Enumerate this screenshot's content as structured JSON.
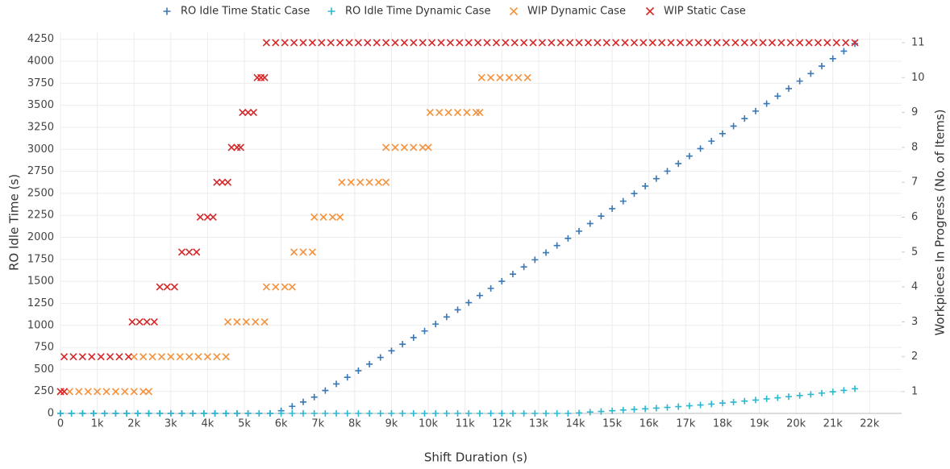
{
  "chart_data": {
    "type": "scatter",
    "x_label": "Shift Duration (s)",
    "y_label": "RO Idle Time (s)",
    "y2_label": "Workpieces In Progress (No. of Items)",
    "xlim": [
      0,
      22870
    ],
    "ylim": [
      0,
      4330
    ],
    "y2lim": [
      0.376,
      11.3
    ],
    "xticks": [
      0,
      {
        "value": 1000,
        "label": "1k"
      },
      {
        "value": 2000,
        "label": "2k"
      },
      {
        "value": 3000,
        "label": "3k"
      },
      {
        "value": 4000,
        "label": "4k"
      },
      {
        "value": 5000,
        "label": "5k"
      },
      {
        "value": 6000,
        "label": "6k"
      },
      {
        "value": 7000,
        "label": "7k"
      },
      {
        "value": 8000,
        "label": "8k"
      },
      {
        "value": 9000,
        "label": "9k"
      },
      {
        "value": 10000,
        "label": "10k"
      },
      {
        "value": 11000,
        "label": "11k"
      },
      {
        "value": 12000,
        "label": "12k"
      },
      {
        "value": 13000,
        "label": "13k"
      },
      {
        "value": 14000,
        "label": "14k"
      },
      {
        "value": 15000,
        "label": "15k"
      },
      {
        "value": 16000,
        "label": "16k"
      },
      {
        "value": 17000,
        "label": "17k"
      },
      {
        "value": 18000,
        "label": "18k"
      },
      {
        "value": 19000,
        "label": "19k"
      },
      {
        "value": 20000,
        "label": "20k"
      },
      {
        "value": 21000,
        "label": "21k"
      },
      {
        "value": 22000,
        "label": "22k"
      }
    ],
    "yticks": [
      0,
      250,
      500,
      750,
      1000,
      1250,
      1500,
      1750,
      2000,
      2250,
      2500,
      2750,
      3000,
      3250,
      3500,
      3750,
      4000,
      4250
    ],
    "y2ticks": [
      1,
      2,
      3,
      4,
      5,
      6,
      7,
      8,
      9,
      10,
      11
    ],
    "grid": true,
    "legend": "top",
    "series": [
      {
        "name": "RO Idle Time Static Case",
        "color": "#3a77b5",
        "marker": "plus",
        "x": [
          0,
          300,
          600,
          900,
          1200,
          1500,
          1800,
          2100,
          2400,
          2700,
          3000,
          3300,
          3600,
          3900,
          4200,
          4500,
          4800,
          5100,
          5400,
          5700,
          6000,
          6300,
          6600,
          6900,
          7200,
          7500,
          7800,
          8100,
          8400,
          8700,
          9000,
          9300,
          9600,
          9900,
          10200,
          10500,
          10800,
          11100,
          11400,
          11700,
          12000,
          12300,
          12600,
          12900,
          13200,
          13500,
          13800,
          14100,
          14400,
          14700,
          15000,
          15300,
          15600,
          15900,
          16200,
          16500,
          16800,
          17100,
          17400,
          17700,
          18000,
          18300,
          18600,
          18900,
          19200,
          19500,
          19800,
          20100,
          20400,
          20700,
          21000,
          21300,
          21600
        ],
        "values": [
          0,
          0,
          0,
          0,
          0,
          0,
          0,
          0,
          0,
          0,
          0,
          0,
          0,
          0,
          0,
          0,
          0,
          0,
          0,
          0,
          30,
          80,
          130,
          185,
          260,
          335,
          410,
          485,
          560,
          636,
          711,
          786,
          861,
          936,
          1015,
          1096,
          1177,
          1258,
          1339,
          1420,
          1501,
          1582,
          1664,
          1745,
          1826,
          1907,
          1988,
          2070,
          2156,
          2241,
          2326,
          2411,
          2497,
          2582,
          2667,
          2752,
          2837,
          2923,
          3008,
          3093,
          3178,
          3264,
          3349,
          3434,
          3519,
          3604,
          3690,
          3775,
          3860,
          3945,
          4030,
          4115,
          4200
        ]
      },
      {
        "name": "RO Idle Time Dynamic Case",
        "color": "#2bb7cf",
        "marker": "plus",
        "x": [
          0,
          300,
          600,
          900,
          1200,
          1500,
          1800,
          2100,
          2400,
          2700,
          3000,
          3300,
          3600,
          3900,
          4200,
          4500,
          4800,
          5100,
          5400,
          5700,
          6000,
          6300,
          6600,
          6900,
          7200,
          7500,
          7800,
          8100,
          8400,
          8700,
          9000,
          9300,
          9600,
          9900,
          10200,
          10500,
          10800,
          11100,
          11400,
          11700,
          12000,
          12300,
          12600,
          12900,
          13200,
          13500,
          13800,
          14100,
          14400,
          14700,
          15000,
          15300,
          15600,
          15900,
          16200,
          16500,
          16800,
          17100,
          17400,
          17700,
          18000,
          18300,
          18600,
          18900,
          19200,
          19500,
          19800,
          20100,
          20400,
          20700,
          21000,
          21300,
          21600
        ],
        "values": [
          0,
          0,
          0,
          0,
          0,
          0,
          0,
          0,
          0,
          0,
          0,
          0,
          0,
          0,
          0,
          0,
          0,
          0,
          0,
          0,
          0,
          0,
          0,
          0,
          0,
          0,
          0,
          0,
          0,
          0,
          0,
          0,
          0,
          0,
          0,
          0,
          0,
          0,
          0,
          0,
          0,
          0,
          0,
          0,
          0,
          0,
          0,
          5,
          15,
          22,
          30,
          38,
          45,
          52,
          60,
          68,
          77,
          86,
          96,
          106,
          117,
          128,
          140,
          152,
          165,
          177,
          190,
          203,
          216,
          230,
          245,
          262,
          280
        ]
      },
      {
        "name": "WIP Dynamic Case",
        "color": "#f5913a",
        "marker": "cross",
        "axis": "y2",
        "x": [
          0,
          250,
          500,
          750,
          1000,
          1250,
          1500,
          1750,
          2000,
          2250,
          2400,
          2000,
          2250,
          2500,
          2750,
          3000,
          3250,
          3500,
          3750,
          4000,
          4250,
          4500,
          4550,
          4800,
          5050,
          5300,
          5550,
          5600,
          5850,
          6100,
          6300,
          6350,
          6600,
          6850,
          6900,
          7150,
          7400,
          7600,
          7650,
          7900,
          8150,
          8400,
          8650,
          8850,
          8850,
          9100,
          9350,
          9600,
          9850,
          10000,
          10050,
          10300,
          10550,
          10800,
          11050,
          11300,
          11400,
          11450,
          11700,
          11950,
          12200,
          12450,
          12700
        ],
        "values": [
          1,
          1,
          1,
          1,
          1,
          1,
          1,
          1,
          1,
          1,
          1,
          2,
          2,
          2,
          2,
          2,
          2,
          2,
          2,
          2,
          2,
          2,
          3,
          3,
          3,
          3,
          3,
          4,
          4,
          4,
          4,
          5,
          5,
          5,
          6,
          6,
          6,
          6,
          7,
          7,
          7,
          7,
          7,
          7,
          8,
          8,
          8,
          8,
          8,
          8,
          9,
          9,
          9,
          9,
          9,
          9,
          9,
          10,
          10,
          10,
          10,
          10,
          10
        ]
      },
      {
        "name": "WIP Static Case",
        "color": "#d62728",
        "marker": "cross",
        "axis": "y2",
        "x": [
          0,
          100,
          100,
          350,
          600,
          850,
          1100,
          1350,
          1600,
          1850,
          1950,
          2150,
          2350,
          2550,
          2700,
          2900,
          3100,
          3300,
          3500,
          3700,
          3800,
          4000,
          4150,
          4250,
          4400,
          4550,
          4650,
          4800,
          4900,
          4950,
          5100,
          5250,
          5350,
          5450,
          5550,
          5600,
          5850,
          6100,
          6350,
          6600,
          6850,
          7100,
          7350,
          7600,
          7850,
          8100,
          8350,
          8600,
          8850,
          9100,
          9350,
          9600,
          9850,
          10100,
          10350,
          10600,
          10850,
          11100,
          11350,
          11600,
          11850,
          12100,
          12350,
          12600,
          12850,
          13100,
          13350,
          13600,
          13850,
          14100,
          14350,
          14600,
          14850,
          15100,
          15350,
          15600,
          15850,
          16100,
          16350,
          16600,
          16850,
          17100,
          17350,
          17600,
          17850,
          18100,
          18350,
          18600,
          18850,
          19100,
          19350,
          19600,
          19850,
          20100,
          20350,
          20600,
          20850,
          21100,
          21350,
          21600
        ],
        "values": [
          1,
          1,
          2,
          2,
          2,
          2,
          2,
          2,
          2,
          2,
          3,
          3,
          3,
          3,
          4,
          4,
          4,
          5,
          5,
          5,
          6,
          6,
          6,
          7,
          7,
          7,
          8,
          8,
          8,
          9,
          9,
          9,
          10,
          10,
          10,
          11,
          11,
          11,
          11,
          11,
          11,
          11,
          11,
          11,
          11,
          11,
          11,
          11,
          11,
          11,
          11,
          11,
          11,
          11,
          11,
          11,
          11,
          11,
          11,
          11,
          11,
          11,
          11,
          11,
          11,
          11,
          11,
          11,
          11,
          11,
          11,
          11,
          11,
          11,
          11,
          11,
          11,
          11,
          11,
          11,
          11,
          11,
          11,
          11,
          11,
          11,
          11,
          11,
          11,
          11,
          11,
          11,
          11,
          11,
          11,
          11,
          11,
          11,
          11,
          11
        ]
      }
    ]
  }
}
